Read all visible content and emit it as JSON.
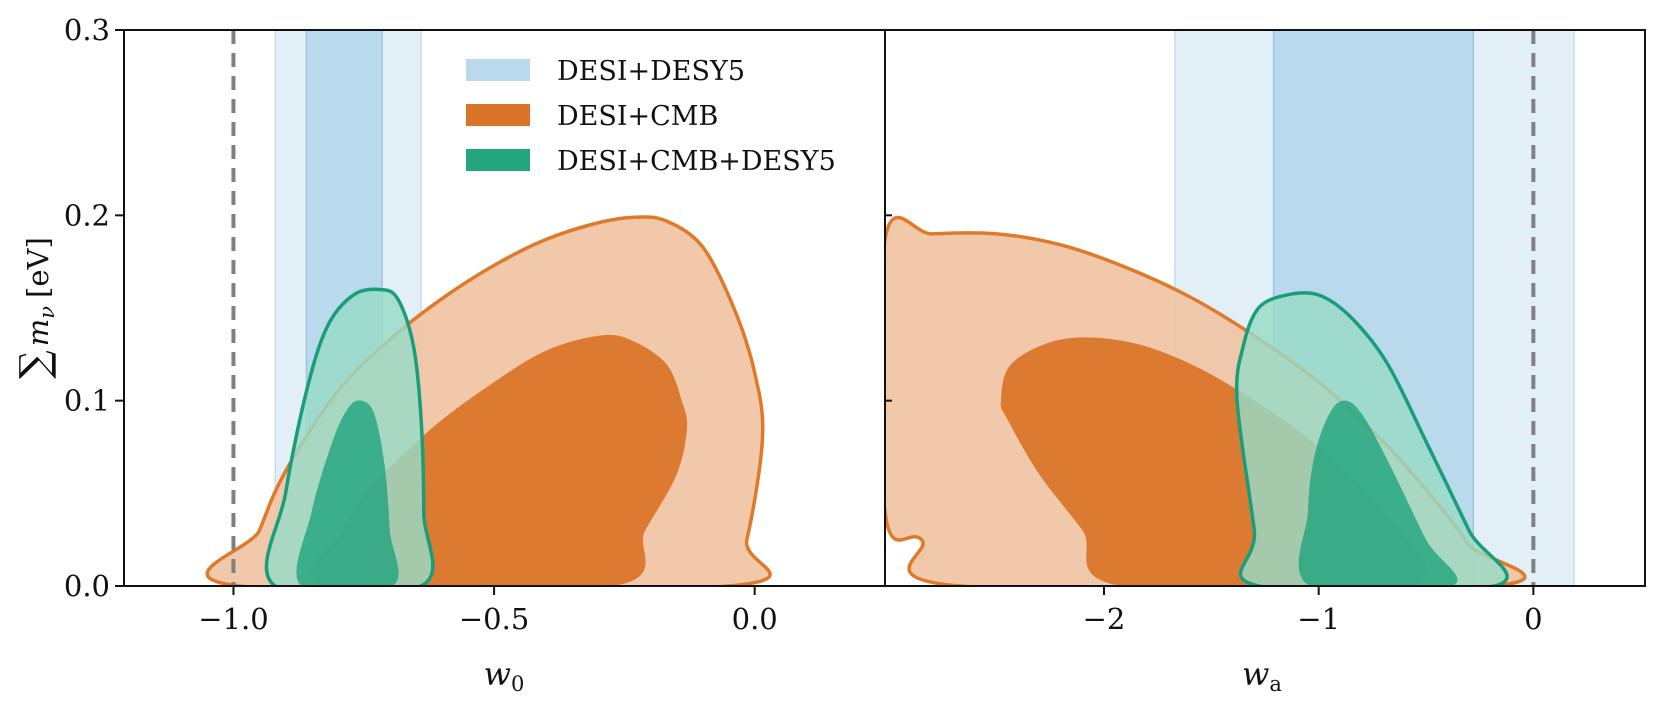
{
  "chart_data": {
    "type": "contour",
    "colors": {
      "blue_inner": "#b9daec",
      "blue_outer": "#e3eff7",
      "blue_edge": "#9cc7e2",
      "orange_inner": "#db7428",
      "orange_outer": "#f0c4a4",
      "orange_edge": "#e07a2a",
      "green_inner": "#23a57f",
      "green_outer": "#99dbc7",
      "green_edge": "#1a9e7a",
      "reference_line": "#808080"
    },
    "ylabel": "∑ m_ν [eV]",
    "ylabel_parts": {
      "symbol": "∑",
      "var": "m",
      "sub": "ν",
      "unit": "[eV]"
    },
    "ylim": [
      0,
      0.3
    ],
    "yticks": [
      0.0,
      0.1,
      0.2,
      0.3
    ],
    "ytick_labels": [
      "0.0",
      "0.1",
      "0.2",
      "0.3"
    ],
    "legend": {
      "location": "upper center of left panel",
      "entries": [
        {
          "label": "DESI+DESY5",
          "color_key": "blue_inner"
        },
        {
          "label": "DESI+CMB",
          "color_key": "orange_inner"
        },
        {
          "label": "DESI+CMB+DESY5",
          "color_key": "green_inner"
        }
      ]
    },
    "panels": [
      {
        "id": "w0",
        "xlabel": "w_0",
        "xlabel_parts": {
          "var": "w",
          "sub": "0"
        },
        "xlim": [
          -1.21,
          0.25
        ],
        "xticks": [
          -1.0,
          -0.5,
          0.0
        ],
        "xtick_labels": [
          "−1.0",
          "−0.5",
          "0.0"
        ],
        "reference_x": -1.0,
        "bands": {
          "DESI+DESY5": {
            "outer": [
              -0.92,
              -0.64
            ],
            "inner": [
              -0.86,
              -0.715
            ]
          }
        },
        "contours": {
          "DESI+CMB": {
            "outer": [
              [
                -0.99,
                0.0
              ],
              [
                -0.95,
                0.03
              ],
              [
                -0.9,
                0.062
              ],
              [
                -0.8,
                0.105
              ],
              [
                -0.7,
                0.133
              ],
              [
                -0.6,
                0.155
              ],
              [
                -0.5,
                0.173
              ],
              [
                -0.4,
                0.187
              ],
              [
                -0.3,
                0.196
              ],
              [
                -0.23,
                0.199
              ],
              [
                -0.17,
                0.197
              ],
              [
                -0.1,
                0.183
              ],
              [
                -0.04,
                0.15
              ],
              [
                0.0,
                0.115
              ],
              [
                0.015,
                0.08
              ],
              [
                -0.015,
                0.025
              ],
              [
                -0.05,
                0.0
              ]
            ],
            "inner": [
              [
                -0.82,
                0.0
              ],
              [
                -0.79,
                0.03
              ],
              [
                -0.74,
                0.052
              ],
              [
                -0.62,
                0.085
              ],
              [
                -0.5,
                0.11
              ],
              [
                -0.4,
                0.127
              ],
              [
                -0.3,
                0.135
              ],
              [
                -0.24,
                0.133
              ],
              [
                -0.17,
                0.12
              ],
              [
                -0.14,
                0.1
              ],
              [
                -0.13,
                0.085
              ],
              [
                -0.15,
                0.06
              ],
              [
                -0.21,
                0.03
              ],
              [
                -0.27,
                0.0
              ]
            ]
          },
          "DESI+CMB+DESY5": {
            "outer": [
              [
                -0.92,
                0.0
              ],
              [
                -0.9,
                0.05
              ],
              [
                -0.86,
                0.105
              ],
              [
                -0.82,
                0.14
              ],
              [
                -0.77,
                0.157
              ],
              [
                -0.72,
                0.16
              ],
              [
                -0.685,
                0.155
              ],
              [
                -0.655,
                0.13
              ],
              [
                -0.64,
                0.09
              ],
              [
                -0.635,
                0.04
              ],
              [
                -0.64,
                0.0
              ]
            ],
            "inner": [
              [
                -0.87,
                0.0
              ],
              [
                -0.85,
                0.04
              ],
              [
                -0.81,
                0.078
              ],
              [
                -0.78,
                0.096
              ],
              [
                -0.755,
                0.1
              ],
              [
                -0.73,
                0.093
              ],
              [
                -0.71,
                0.065
              ],
              [
                -0.7,
                0.03
              ],
              [
                -0.695,
                0.0
              ]
            ]
          }
        }
      },
      {
        "id": "wa",
        "xlabel": "w_a",
        "xlabel_parts": {
          "var": "w",
          "sub": "a"
        },
        "xlim": [
          -3.02,
          0.52
        ],
        "xticks": [
          -2,
          -1,
          0
        ],
        "xtick_labels": [
          "−2",
          "−1",
          "0"
        ],
        "reference_x": 0,
        "bands": {
          "DESI+DESY5": {
            "outer": [
              -1.67,
              0.19
            ],
            "inner": [
              -1.21,
              -0.28
            ]
          }
        },
        "contours": {
          "DESI+CMB": {
            "outer": [
              [
                -3.02,
                0.187
              ],
              [
                -2.8,
                0.19
              ],
              [
                -2.5,
                0.19
              ],
              [
                -2.2,
                0.184
              ],
              [
                -1.9,
                0.172
              ],
              [
                -1.6,
                0.156
              ],
              [
                -1.3,
                0.135
              ],
              [
                -1.0,
                0.11
              ],
              [
                -0.7,
                0.078
              ],
              [
                -0.45,
                0.045
              ],
              [
                -0.3,
                0.022
              ],
              [
                -0.2,
                0.0
              ],
              [
                -2.67,
                0.0
              ],
              [
                -2.85,
                0.025
              ],
              [
                -3.02,
                0.04
              ]
            ],
            "inner": [
              [
                -2.43,
                0.12
              ],
              [
                -2.2,
                0.133
              ],
              [
                -1.9,
                0.132
              ],
              [
                -1.6,
                0.12
              ],
              [
                -1.3,
                0.1
              ],
              [
                -1.0,
                0.075
              ],
              [
                -0.7,
                0.04
              ],
              [
                -0.57,
                0.0
              ],
              [
                -1.92,
                0.0
              ],
              [
                -2.1,
                0.03
              ],
              [
                -2.3,
                0.06
              ],
              [
                -2.45,
                0.09
              ],
              [
                -2.48,
                0.1
              ]
            ]
          },
          "DESI+CMB+DESY5": {
            "outer": [
              [
                -1.28,
                0.0
              ],
              [
                -1.3,
                0.03
              ],
              [
                -1.38,
                0.1
              ],
              [
                -1.35,
                0.13
              ],
              [
                -1.28,
                0.15
              ],
              [
                -1.15,
                0.157
              ],
              [
                -1.0,
                0.157
              ],
              [
                -0.85,
                0.145
              ],
              [
                -0.68,
                0.12
              ],
              [
                -0.5,
                0.078
              ],
              [
                -0.3,
                0.03
              ],
              [
                -0.18,
                0.0
              ]
            ],
            "inner": [
              [
                -1.04,
                0.0
              ],
              [
                -1.05,
                0.04
              ],
              [
                -1.02,
                0.07
              ],
              [
                -0.95,
                0.093
              ],
              [
                -0.88,
                0.1
              ],
              [
                -0.8,
                0.093
              ],
              [
                -0.68,
                0.068
              ],
              [
                -0.5,
                0.025
              ],
              [
                -0.38,
                0.0
              ]
            ]
          }
        }
      }
    ]
  }
}
